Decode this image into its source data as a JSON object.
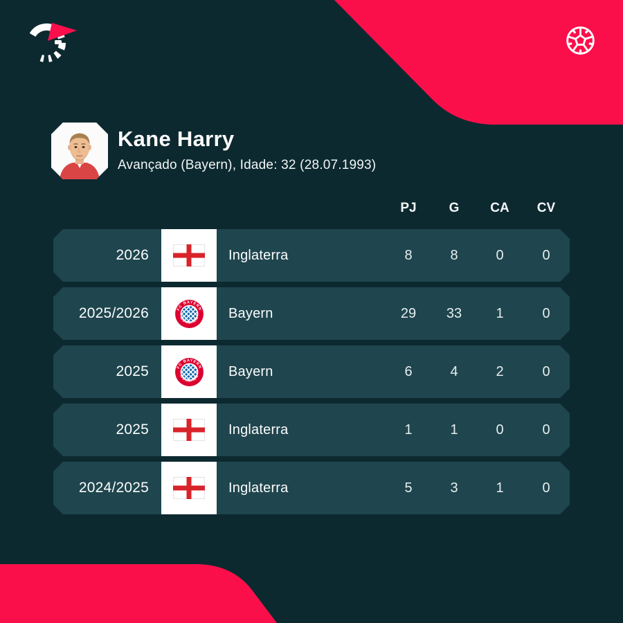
{
  "brand": {
    "logo_icon": "flashscore-logo",
    "ball_icon": "football-icon"
  },
  "player": {
    "name": "Kane Harry",
    "details": "Avançado (Bayern), Idade: 32 (28.07.1993)"
  },
  "table": {
    "headers": [
      "PJ",
      "G",
      "CA",
      "CV"
    ],
    "rows": [
      {
        "season": "2026",
        "badge": "england",
        "team": "Inglaterra",
        "pj": "8",
        "g": "8",
        "ca": "0",
        "cv": "0"
      },
      {
        "season": "2025/2026",
        "badge": "bayern",
        "team": "Bayern",
        "pj": "29",
        "g": "33",
        "ca": "1",
        "cv": "0"
      },
      {
        "season": "2025",
        "badge": "bayern",
        "team": "Bayern",
        "pj": "6",
        "g": "4",
        "ca": "2",
        "cv": "0"
      },
      {
        "season": "2025",
        "badge": "england",
        "team": "Inglaterra",
        "pj": "1",
        "g": "1",
        "ca": "0",
        "cv": "0"
      },
      {
        "season": "2024/2025",
        "badge": "england",
        "team": "Inglaterra",
        "pj": "5",
        "g": "3",
        "ca": "1",
        "cv": "0"
      }
    ]
  },
  "colors": {
    "accent": "#fb0f4b",
    "background": "#0d2930",
    "row": "#1f454e",
    "england-red": "#d8232a",
    "bayern-red": "#dc0030",
    "bayern-blue": "#0b63ac"
  }
}
